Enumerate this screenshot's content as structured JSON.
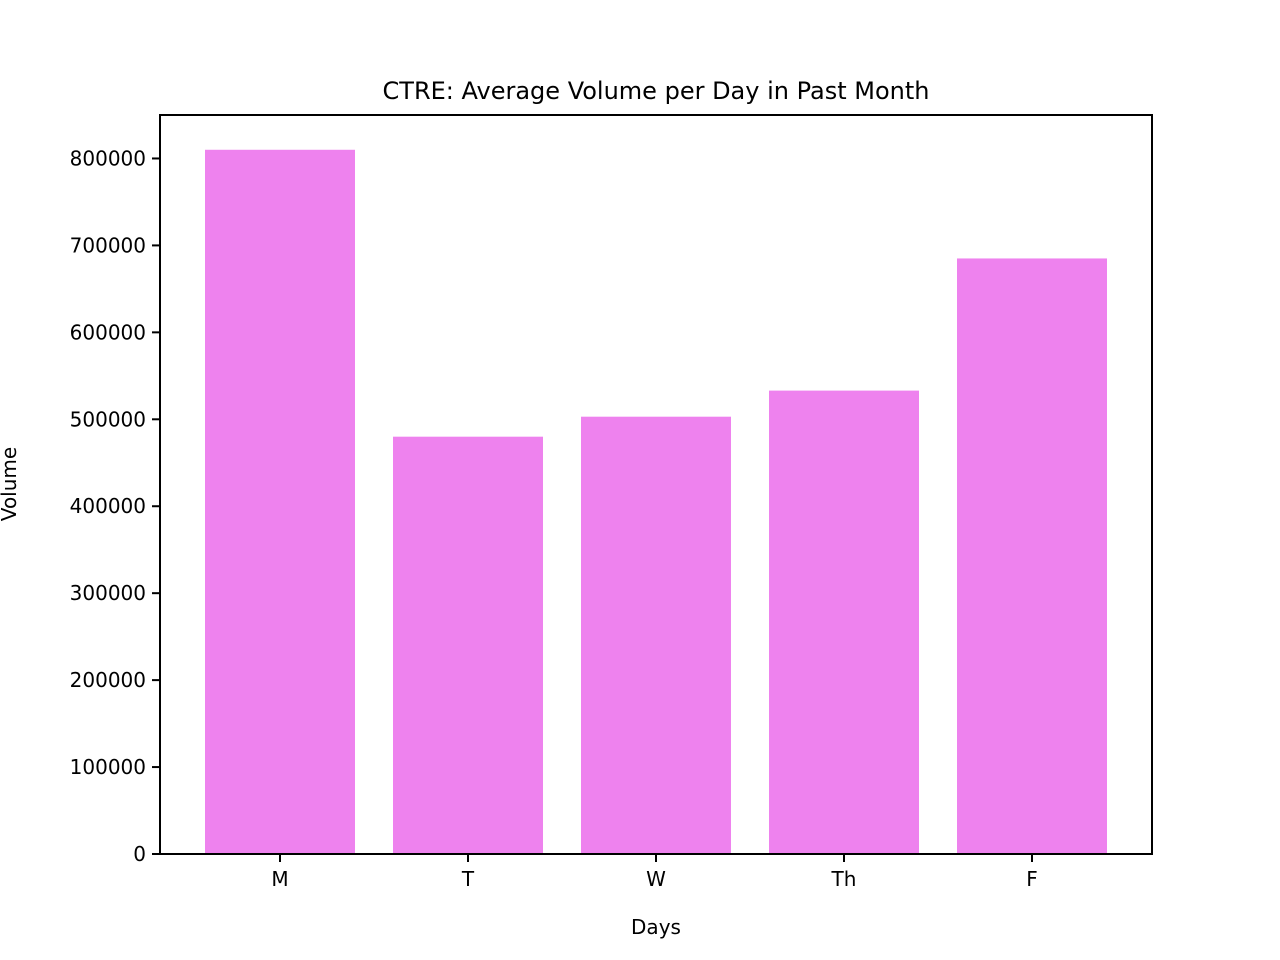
{
  "chart_data": {
    "type": "bar",
    "title": "CTRE: Average Volume per Day in Past Month",
    "xlabel": "Days",
    "ylabel": "Volume",
    "categories": [
      "M",
      "T",
      "W",
      "Th",
      "F"
    ],
    "values": [
      810000,
      480000,
      503000,
      533000,
      685000
    ],
    "ylim": [
      0,
      850000
    ],
    "yticks": [
      0,
      100000,
      200000,
      300000,
      400000,
      500000,
      600000,
      700000,
      800000
    ],
    "bar_color": "#ee82ee",
    "grid": false,
    "legend": "none"
  }
}
